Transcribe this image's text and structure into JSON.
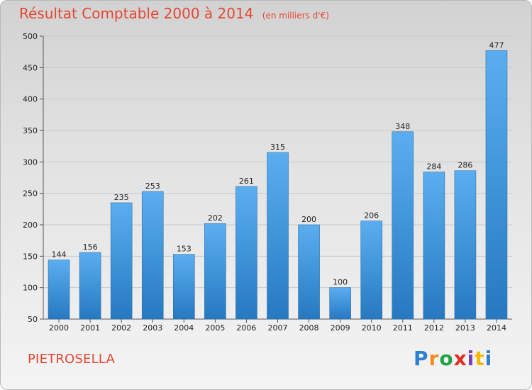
{
  "title": "Résultat Comptable 2000 à 2014",
  "subtitle": "(en milliers d'€)",
  "place": "PIETROSELLA",
  "brand": [
    "P",
    "r",
    "o",
    "x",
    "i",
    "t",
    "i"
  ],
  "colors": {
    "accent": "#e6462f",
    "bar": "#3b95d8"
  },
  "chart_data": {
    "type": "bar",
    "title": "Résultat Comptable 2000 à 2014",
    "subtitle": "(en milliers d'€)",
    "xlabel": "",
    "ylabel": "",
    "categories": [
      "2000",
      "2001",
      "2002",
      "2003",
      "2004",
      "2005",
      "2006",
      "2007",
      "2008",
      "2009",
      "2010",
      "2011",
      "2012",
      "2013",
      "2014"
    ],
    "values": [
      144,
      156,
      235,
      253,
      153,
      202,
      261,
      315,
      200,
      100,
      206,
      348,
      284,
      286,
      477
    ],
    "ylim": [
      50,
      500
    ],
    "yticks": [
      50,
      100,
      150,
      200,
      250,
      300,
      350,
      400,
      450,
      500
    ],
    "grid": true,
    "legend": "none"
  }
}
